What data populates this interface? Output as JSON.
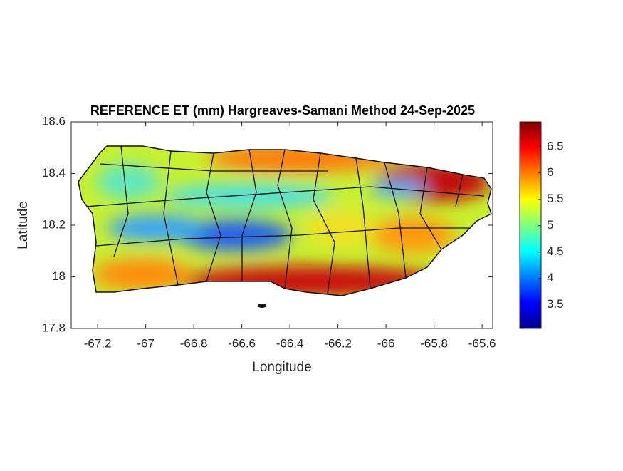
{
  "chart_data": {
    "type": "map",
    "title": "REFERENCE ET (mm) Hargreaves-Samani Method  24-Sep-2025",
    "x_label": "Longitude",
    "y_label": "Latitude",
    "xlim": [
      -67.31,
      -65.556
    ],
    "ylim": [
      17.8,
      18.6
    ],
    "xticks": [
      -67.2,
      -67,
      -66.8,
      -66.6,
      -66.4,
      -66.2,
      -66,
      -65.8,
      -65.6
    ],
    "yticks": [
      17.8,
      18,
      18.2,
      18.4,
      18.6
    ],
    "colormap": "jet",
    "clim": [
      3.05,
      6.97
    ],
    "cticks": [
      3.5,
      4,
      4.5,
      5,
      5.5,
      6,
      6.5
    ]
  }
}
